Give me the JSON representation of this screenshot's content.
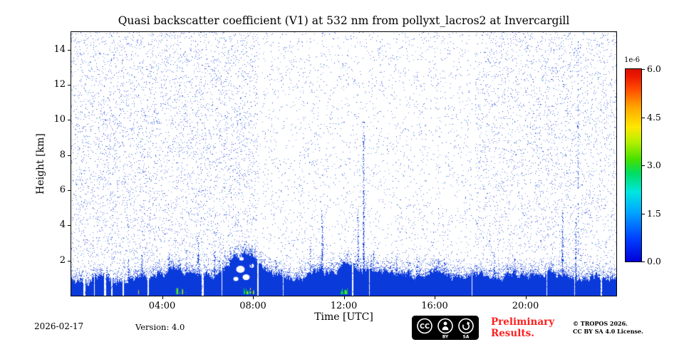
{
  "chart_data": {
    "type": "heatmap",
    "title": "Quasi backscatter coefficient (V1) at 532 nm from pollyxt_lacros2 at Invercargill",
    "xlabel": "Time [UTC]",
    "ylabel": "Height [km]",
    "x_range_hours": [
      0,
      24
    ],
    "x_ticks": [
      {
        "hour": 4,
        "label": "04:00"
      },
      {
        "hour": 8,
        "label": "08:00"
      },
      {
        "hour": 12,
        "label": "12:00"
      },
      {
        "hour": 16,
        "label": "16:00"
      },
      {
        "hour": 20,
        "label": "20:00"
      }
    ],
    "y_range_km": [
      0,
      15
    ],
    "y_ticks": [
      2,
      4,
      6,
      8,
      10,
      12,
      14
    ],
    "colorbar": {
      "scale_label": "1e-6",
      "ticks": [
        0.0,
        1.5,
        3.0,
        4.5,
        6.0
      ],
      "value_range": [
        0,
        6e-06
      ],
      "colormap": "jet",
      "gradient_stops": [
        {
          "color": "#0000d8",
          "pos": 0.0
        },
        {
          "color": "#0040ff",
          "pos": 0.12
        },
        {
          "color": "#00a8ff",
          "pos": 0.26
        },
        {
          "color": "#00e6e0",
          "pos": 0.36
        },
        {
          "color": "#00dd60",
          "pos": 0.46
        },
        {
          "color": "#46e000",
          "pos": 0.53
        },
        {
          "color": "#b4f000",
          "pos": 0.62
        },
        {
          "color": "#ffe600",
          "pos": 0.7
        },
        {
          "color": "#ffa800",
          "pos": 0.8
        },
        {
          "color": "#ff5000",
          "pos": 0.89
        },
        {
          "color": "#ee1a00",
          "pos": 0.96
        },
        {
          "color": "#d81000",
          "pos": 1.0
        }
      ]
    },
    "content": {
      "seed": 11,
      "noise_dot_count": 17000,
      "noise_sparse_window_hours": [
        8.4,
        17.6
      ],
      "noise_sparse_factor": 0.42,
      "noise_thin_columns_hours": [
        8.33,
        17.7
      ],
      "speckle_colors": [
        "#1f45d6",
        "#1840cf",
        "#2a55e0",
        "#00bfe8",
        "#2fd45e"
      ],
      "layer_color": "#0b3adb",
      "layer_top_profile_km": [
        [
          0,
          1.0
        ],
        [
          1,
          0.95
        ],
        [
          2,
          0.9
        ],
        [
          3,
          1.0
        ],
        [
          4,
          1.1
        ],
        [
          4.7,
          1.5
        ],
        [
          5,
          1.2
        ],
        [
          5.5,
          1.4
        ],
        [
          6,
          1.1
        ],
        [
          6.5,
          1.3
        ],
        [
          7,
          1.9
        ],
        [
          7.5,
          2.3
        ],
        [
          8,
          2.2
        ],
        [
          8.3,
          1.6
        ],
        [
          9,
          1.2
        ],
        [
          10,
          1.25
        ],
        [
          10.8,
          1.5
        ],
        [
          11.5,
          1.4
        ],
        [
          12,
          1.7
        ],
        [
          12.5,
          1.6
        ],
        [
          13,
          1.3
        ],
        [
          14,
          1.25
        ],
        [
          15,
          1.15
        ],
        [
          16,
          1.2
        ],
        [
          17,
          1.15
        ],
        [
          18,
          1.1
        ],
        [
          19,
          1.05
        ],
        [
          20,
          1.15
        ],
        [
          21,
          1.2
        ],
        [
          22,
          1.1
        ],
        [
          23,
          1.05
        ],
        [
          24,
          1.0
        ]
      ],
      "gaps_hours": [
        [
          0.52,
          0.1
        ],
        [
          0.98,
          0.05
        ],
        [
          1.42,
          0.1
        ],
        [
          1.75,
          0.05
        ],
        [
          2.25,
          0.07
        ],
        [
          3.35,
          0.05
        ],
        [
          5.72,
          0.1
        ],
        [
          6.6,
          0.04
        ],
        [
          8.18,
          0.07
        ],
        [
          9.3,
          0.04
        ],
        [
          12.33,
          0.09
        ],
        [
          13.1,
          0.04
        ],
        [
          17.6,
          0.04
        ],
        [
          20.9,
          0.04
        ],
        [
          22.12,
          0.06
        ],
        [
          23.3,
          0.05
        ]
      ],
      "holes": [
        {
          "hour": 7.45,
          "km": 1.5,
          "rx": 6,
          "ry": 5
        },
        {
          "hour": 7.7,
          "km": 1.05,
          "rx": 5,
          "ry": 4
        },
        {
          "hour": 7.25,
          "km": 0.95,
          "rx": 3.5,
          "ry": 3
        },
        {
          "hour": 7.95,
          "km": 1.7,
          "rx": 3,
          "ry": 3
        },
        {
          "hour": 7.5,
          "km": 2.1,
          "rx": 3,
          "ry": 2.5
        }
      ],
      "plumes_hour_top": [
        [
          2.5,
          2.2
        ],
        [
          3.1,
          2.3
        ],
        [
          4.3,
          2.4
        ],
        [
          5.05,
          2.6
        ],
        [
          5.6,
          3.4
        ],
        [
          6.3,
          3.0
        ],
        [
          7.0,
          2.8
        ],
        [
          7.9,
          2.9
        ],
        [
          9.0,
          2.2
        ],
        [
          10.5,
          3.4
        ],
        [
          11.05,
          4.7
        ],
        [
          12.6,
          4.9
        ],
        [
          12.86,
          9.9
        ],
        [
          13.3,
          2.6
        ],
        [
          14.3,
          2.5
        ],
        [
          15.2,
          2.2
        ],
        [
          16.4,
          2.1
        ],
        [
          18.6,
          2.3
        ],
        [
          19.5,
          2.1
        ],
        [
          21.6,
          5.0
        ],
        [
          22.2,
          4.3
        ]
      ],
      "lines": [
        {
          "hour": 22.32,
          "top_km": 14.6,
          "prob": 0.16
        }
      ],
      "surface_bright_hours": [
        [
          2.85,
          3.0
        ],
        [
          4.55,
          5.05
        ],
        [
          7.55,
          8.05
        ],
        [
          11.85,
          12.3
        ]
      ],
      "surface_bright_colors": [
        "#00d24a",
        "#ffd900"
      ]
    }
  },
  "footer": {
    "date": "2026-02-17",
    "version": "Version: 4.0",
    "preliminary_line1": "Preliminary",
    "preliminary_line2": "Results.",
    "preliminary_color": "#ff1f1f",
    "copyright_line1": "© TROPOS 2026.",
    "copyright_line2": "CC BY SA 4.0 License.",
    "license_badge": {
      "cc": "CC",
      "by": "BY",
      "sa": "SA"
    }
  }
}
